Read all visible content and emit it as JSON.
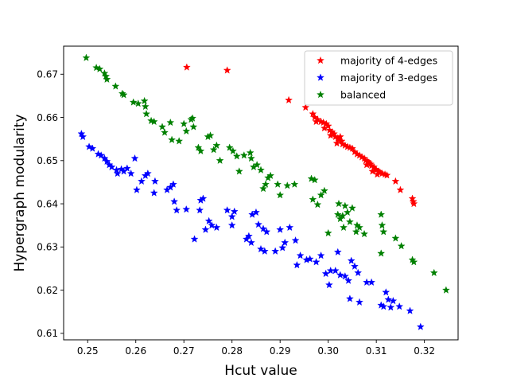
{
  "chart_data": {
    "type": "scatter",
    "xlabel": "Hcut value",
    "ylabel": "Hypergraph modularity",
    "xlim": [
      0.245,
      0.327
    ],
    "ylim": [
      0.6085,
      0.6765
    ],
    "xticks": [
      0.25,
      0.26,
      0.27,
      0.28,
      0.29,
      0.3,
      0.31,
      0.32
    ],
    "xtick_labels": [
      "0.25",
      "0.26",
      "0.27",
      "0.28",
      "0.29",
      "0.30",
      "0.31",
      "0.32"
    ],
    "yticks": [
      0.61,
      0.62,
      0.63,
      0.64,
      0.65,
      0.66,
      0.67
    ],
    "ytick_labels": [
      "0.61",
      "0.62",
      "0.63",
      "0.64",
      "0.65",
      "0.66",
      "0.67"
    ],
    "grid": false,
    "legend_position": "top-right",
    "marker": "star",
    "series": [
      {
        "name": "majority of 4-edges",
        "color": "#ff0000",
        "points": [
          [
            0.2706,
            0.6716
          ],
          [
            0.279,
            0.6709
          ],
          [
            0.2918,
            0.664
          ],
          [
            0.2953,
            0.6623
          ],
          [
            0.2968,
            0.6608
          ],
          [
            0.2972,
            0.66
          ],
          [
            0.2978,
            0.6595
          ],
          [
            0.2985,
            0.659
          ],
          [
            0.299,
            0.6588
          ],
          [
            0.2996,
            0.6585
          ],
          [
            0.3,
            0.658
          ],
          [
            0.2975,
            0.659
          ],
          [
            0.2992,
            0.6575
          ],
          [
            0.3003,
            0.657
          ],
          [
            0.3008,
            0.6566
          ],
          [
            0.3012,
            0.6562
          ],
          [
            0.3005,
            0.6558
          ],
          [
            0.3015,
            0.6555
          ],
          [
            0.302,
            0.6552
          ],
          [
            0.3022,
            0.6548
          ],
          [
            0.3028,
            0.6545
          ],
          [
            0.3018,
            0.654
          ],
          [
            0.303,
            0.6538
          ],
          [
            0.3035,
            0.6535
          ],
          [
            0.304,
            0.6532
          ],
          [
            0.3025,
            0.6555
          ],
          [
            0.3045,
            0.653
          ],
          [
            0.305,
            0.6528
          ],
          [
            0.3055,
            0.652
          ],
          [
            0.306,
            0.6515
          ],
          [
            0.3065,
            0.6512
          ],
          [
            0.307,
            0.6508
          ],
          [
            0.3075,
            0.6505
          ],
          [
            0.3078,
            0.65
          ],
          [
            0.3082,
            0.6498
          ],
          [
            0.3085,
            0.6495
          ],
          [
            0.3088,
            0.6492
          ],
          [
            0.309,
            0.6488
          ],
          [
            0.3095,
            0.6485
          ],
          [
            0.3098,
            0.648
          ],
          [
            0.31,
            0.6478
          ],
          [
            0.3105,
            0.6475
          ],
          [
            0.3108,
            0.6472
          ],
          [
            0.3112,
            0.647
          ],
          [
            0.3118,
            0.6468
          ],
          [
            0.3122,
            0.6466
          ],
          [
            0.308,
            0.649
          ],
          [
            0.3092,
            0.6475
          ],
          [
            0.3102,
            0.6468
          ],
          [
            0.314,
            0.6452
          ],
          [
            0.315,
            0.6432
          ],
          [
            0.3175,
            0.6412
          ],
          [
            0.3177,
            0.6405
          ],
          [
            0.3178,
            0.64
          ]
        ]
      },
      {
        "name": "majority of 3-edges",
        "color": "#0000ff",
        "points": [
          [
            0.2487,
            0.6562
          ],
          [
            0.249,
            0.6555
          ],
          [
            0.2503,
            0.6532
          ],
          [
            0.251,
            0.6528
          ],
          [
            0.2522,
            0.6515
          ],
          [
            0.2528,
            0.6512
          ],
          [
            0.2535,
            0.6505
          ],
          [
            0.254,
            0.6498
          ],
          [
            0.2545,
            0.649
          ],
          [
            0.255,
            0.6485
          ],
          [
            0.256,
            0.6478
          ],
          [
            0.2562,
            0.647
          ],
          [
            0.257,
            0.648
          ],
          [
            0.2575,
            0.6475
          ],
          [
            0.2582,
            0.6482
          ],
          [
            0.259,
            0.647
          ],
          [
            0.2598,
            0.6505
          ],
          [
            0.2602,
            0.6432
          ],
          [
            0.2612,
            0.6452
          ],
          [
            0.262,
            0.6465
          ],
          [
            0.2625,
            0.647
          ],
          [
            0.2638,
            0.6425
          ],
          [
            0.264,
            0.6452
          ],
          [
            0.2665,
            0.6432
          ],
          [
            0.2672,
            0.6438
          ],
          [
            0.2678,
            0.6445
          ],
          [
            0.268,
            0.6405
          ],
          [
            0.2685,
            0.6385
          ],
          [
            0.2705,
            0.6387
          ],
          [
            0.2722,
            0.6318
          ],
          [
            0.2733,
            0.6385
          ],
          [
            0.2735,
            0.6408
          ],
          [
            0.274,
            0.6412
          ],
          [
            0.2745,
            0.634
          ],
          [
            0.2752,
            0.636
          ],
          [
            0.2758,
            0.635
          ],
          [
            0.2768,
            0.6345
          ],
          [
            0.279,
            0.6385
          ],
          [
            0.28,
            0.635
          ],
          [
            0.28,
            0.637
          ],
          [
            0.2805,
            0.6382
          ],
          [
            0.283,
            0.6318
          ],
          [
            0.2835,
            0.6325
          ],
          [
            0.284,
            0.631
          ],
          [
            0.2842,
            0.6375
          ],
          [
            0.285,
            0.638
          ],
          [
            0.2855,
            0.6352
          ],
          [
            0.286,
            0.6295
          ],
          [
            0.2865,
            0.6342
          ],
          [
            0.2868,
            0.629
          ],
          [
            0.2872,
            0.6335
          ],
          [
            0.289,
            0.629
          ],
          [
            0.29,
            0.634
          ],
          [
            0.2905,
            0.6298
          ],
          [
            0.291,
            0.631
          ],
          [
            0.292,
            0.6345
          ],
          [
            0.2932,
            0.6315
          ],
          [
            0.2935,
            0.6258
          ],
          [
            0.2942,
            0.628
          ],
          [
            0.2955,
            0.627
          ],
          [
            0.2962,
            0.6272
          ],
          [
            0.2975,
            0.6265
          ],
          [
            0.2985,
            0.628
          ],
          [
            0.2995,
            0.6238
          ],
          [
            0.3002,
            0.6212
          ],
          [
            0.3005,
            0.6245
          ],
          [
            0.3015,
            0.6245
          ],
          [
            0.302,
            0.6288
          ],
          [
            0.3025,
            0.6235
          ],
          [
            0.3035,
            0.6232
          ],
          [
            0.3042,
            0.6222
          ],
          [
            0.3048,
            0.6268
          ],
          [
            0.3055,
            0.6255
          ],
          [
            0.3062,
            0.624
          ],
          [
            0.3045,
            0.618
          ],
          [
            0.3065,
            0.6172
          ],
          [
            0.308,
            0.6218
          ],
          [
            0.309,
            0.6218
          ],
          [
            0.311,
            0.6165
          ],
          [
            0.3115,
            0.6162
          ],
          [
            0.312,
            0.6195
          ],
          [
            0.3125,
            0.6178
          ],
          [
            0.313,
            0.616
          ],
          [
            0.3135,
            0.6175
          ],
          [
            0.3148,
            0.6162
          ],
          [
            0.317,
            0.6152
          ],
          [
            0.3192,
            0.6115
          ]
        ]
      },
      {
        "name": "balanced",
        "color": "#008000",
        "points": [
          [
            0.2497,
            0.6738
          ],
          [
            0.2518,
            0.6715
          ],
          [
            0.2525,
            0.6712
          ],
          [
            0.2535,
            0.6702
          ],
          [
            0.2538,
            0.6695
          ],
          [
            0.254,
            0.6688
          ],
          [
            0.2558,
            0.6672
          ],
          [
            0.2572,
            0.6655
          ],
          [
            0.2575,
            0.6652
          ],
          [
            0.2595,
            0.6635
          ],
          [
            0.2605,
            0.6632
          ],
          [
            0.2618,
            0.6638
          ],
          [
            0.262,
            0.6625
          ],
          [
            0.2622,
            0.6608
          ],
          [
            0.2632,
            0.6592
          ],
          [
            0.2638,
            0.659
          ],
          [
            0.2655,
            0.6578
          ],
          [
            0.266,
            0.6565
          ],
          [
            0.2672,
            0.6588
          ],
          [
            0.2675,
            0.6548
          ],
          [
            0.269,
            0.6545
          ],
          [
            0.27,
            0.6585
          ],
          [
            0.2705,
            0.6568
          ],
          [
            0.2715,
            0.6595
          ],
          [
            0.2718,
            0.6598
          ],
          [
            0.272,
            0.6578
          ],
          [
            0.273,
            0.653
          ],
          [
            0.2735,
            0.6522
          ],
          [
            0.275,
            0.6555
          ],
          [
            0.2755,
            0.6558
          ],
          [
            0.2762,
            0.6525
          ],
          [
            0.2768,
            0.6535
          ],
          [
            0.2775,
            0.65
          ],
          [
            0.2795,
            0.653
          ],
          [
            0.2802,
            0.6522
          ],
          [
            0.281,
            0.651
          ],
          [
            0.2815,
            0.6475
          ],
          [
            0.2825,
            0.6512
          ],
          [
            0.2838,
            0.6518
          ],
          [
            0.284,
            0.6505
          ],
          [
            0.2845,
            0.6485
          ],
          [
            0.2852,
            0.649
          ],
          [
            0.286,
            0.6478
          ],
          [
            0.2865,
            0.6435
          ],
          [
            0.287,
            0.6445
          ],
          [
            0.2875,
            0.646
          ],
          [
            0.288,
            0.6465
          ],
          [
            0.2895,
            0.6445
          ],
          [
            0.29,
            0.642
          ],
          [
            0.2915,
            0.6442
          ],
          [
            0.293,
            0.6445
          ],
          [
            0.2965,
            0.6458
          ],
          [
            0.2968,
            0.641
          ],
          [
            0.2972,
            0.6455
          ],
          [
            0.2978,
            0.6398
          ],
          [
            0.2985,
            0.642
          ],
          [
            0.2992,
            0.643
          ],
          [
            0.3,
            0.6332
          ],
          [
            0.302,
            0.6375
          ],
          [
            0.3022,
            0.64
          ],
          [
            0.3025,
            0.6365
          ],
          [
            0.303,
            0.6372
          ],
          [
            0.3032,
            0.6345
          ],
          [
            0.3035,
            0.6395
          ],
          [
            0.304,
            0.638
          ],
          [
            0.3045,
            0.6358
          ],
          [
            0.305,
            0.639
          ],
          [
            0.3058,
            0.6335
          ],
          [
            0.306,
            0.635
          ],
          [
            0.3065,
            0.6345
          ],
          [
            0.3075,
            0.633
          ],
          [
            0.311,
            0.6375
          ],
          [
            0.3112,
            0.635
          ],
          [
            0.3115,
            0.6335
          ],
          [
            0.311,
            0.6285
          ],
          [
            0.314,
            0.632
          ],
          [
            0.3152,
            0.6302
          ],
          [
            0.3175,
            0.627
          ],
          [
            0.3178,
            0.6265
          ],
          [
            0.322,
            0.624
          ],
          [
            0.3245,
            0.62
          ]
        ]
      }
    ]
  }
}
